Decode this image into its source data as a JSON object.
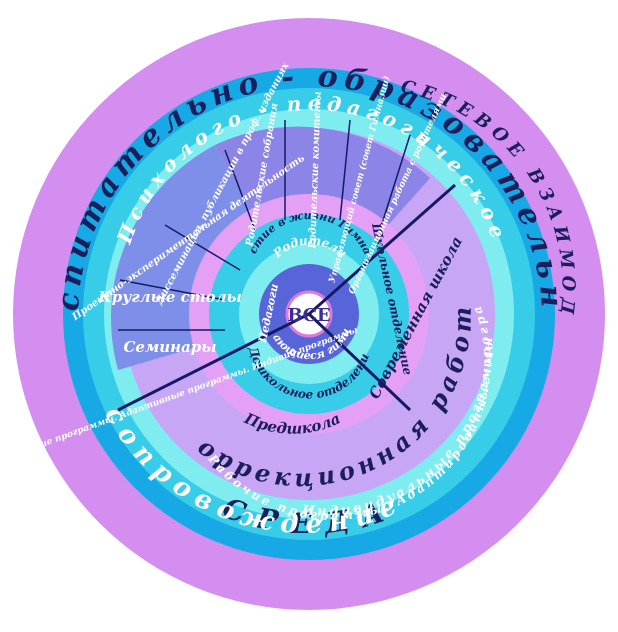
{
  "colors": {
    "outer_ring": "#d48ef0",
    "blue_ring": "#16a9e6",
    "cyan_ring": "#37cde8",
    "pale_cyan": "#7fecf0",
    "sector_blue": "#7e8fea",
    "sector_violet": "#8c84e6",
    "lavender": "#c7a6f5",
    "pink_ring": "#e3a0f5",
    "hub_ring": "#5865d8",
    "dark_text": "#1a1f5c",
    "divider": "#151a66"
  },
  "center": {
    "label": "ВСЕ"
  },
  "rings": {
    "outer_arc_top": "Воспитательно - образовательная",
    "outer_arc_bottom": "СРЕДА",
    "blue_arc_top": "СЕТЕВОЕ ВЗАИМОДЕЙСТВИЕ",
    "cyan_arc_top": "Психолого - педагогическое",
    "cyan_arc_bottom": "сопровождение",
    "lavender_arc": "Коррекционная работа",
    "lavender_sub_1": "Рабочие программы. Адаптированные программы",
    "lavender_sub_2": "Индивидуальные программы",
    "pink_arc": "Предшкола"
  },
  "hub_labels": {
    "teachers": "Педагоги",
    "parents": "Родители",
    "students": "Обучающиеся гимназии"
  },
  "middle_labels": {
    "gymnasium_life": "Участие в жизни Гимназии",
    "preschool_dept": "Дошкольное отделение",
    "school_dept": "Школьное отделение",
    "modern_school": "Современная школа"
  },
  "teacher_sectors": [
    "Диссеминация, публикации в проф. изданиях",
    "Проектно-экспериментальная деятельность",
    "Круглые столы",
    "Семинары",
    "Рабочие программы. Адаптивные программы. Индивид.программы"
  ],
  "parent_sectors": [
    "Родительские собрания",
    "Родительские комитеты",
    "Управляющий совет (совет Гимназии)",
    "Организационная работа с родителями"
  ]
}
